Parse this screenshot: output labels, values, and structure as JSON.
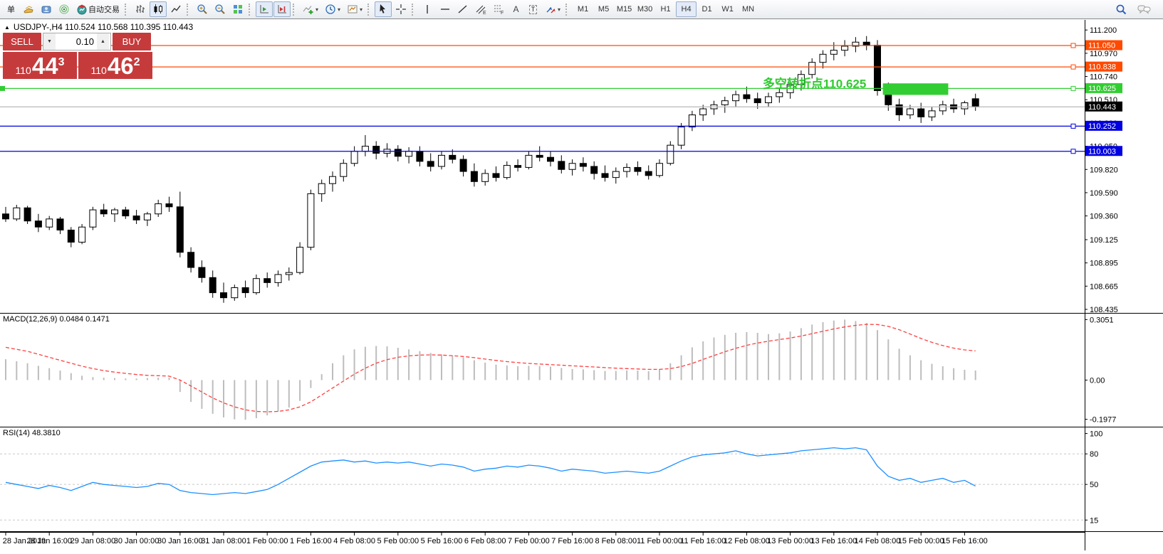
{
  "toolbar": {
    "order_button": "单",
    "autotrading_label": "自动交易",
    "timeframes": [
      "M1",
      "M5",
      "M15",
      "M30",
      "H1",
      "H4",
      "D1",
      "W1",
      "MN"
    ],
    "active_timeframe": "H4"
  },
  "icons": {
    "caret": "▾",
    "collapse": "▲",
    "spin_up": "▲",
    "spin_down": "▼",
    "letter_a": "A",
    "letter_t": "T",
    "channel_sub": "E",
    "fibo_sub": "F"
  },
  "chart": {
    "title": "USDJPY-,H4  110.524 110.568 110.395 110.443",
    "trade_panel": {
      "sell_label": "SELL",
      "buy_label": "BUY",
      "volume": "0.10",
      "sell_price_prefix": "110",
      "sell_price_big": "44",
      "sell_price_sup": "3",
      "buy_price_prefix": "110",
      "buy_price_big": "46",
      "buy_price_sup": "2"
    }
  },
  "chart_data": {
    "type": "candlestick-with-indicators",
    "symbol": "USDJPY-",
    "period": "H4",
    "price_pane": {
      "type": "candlestick",
      "ylim": [
        108.4,
        111.3
      ],
      "yticks": [
        "111.200",
        "110.970",
        "110.740",
        "110.510",
        "110.280",
        "110.050",
        "109.820",
        "109.590",
        "109.360",
        "109.125",
        "108.895",
        "108.665",
        "108.435"
      ],
      "bull_color": "#ffffff",
      "bear_color": "#000000",
      "levels": [
        {
          "price": 111.05,
          "label": "111.050",
          "color": "#ff4a00"
        },
        {
          "price": 110.838,
          "label": "110.838",
          "color": "#ff4a00"
        },
        {
          "price": 110.625,
          "label": "110.625",
          "color": "#32cd32"
        },
        {
          "price": 110.443,
          "label": "110.443",
          "color": "#000000",
          "line_color": "#b8b8b8",
          "current": true
        },
        {
          "price": 110.252,
          "label": "110.252",
          "color": "#0000e0"
        },
        {
          "price": 110.003,
          "label": "110.003",
          "color": "#0000e0"
        }
      ],
      "rectangle": {
        "from_index": 80.5,
        "to_index": 86.5,
        "price_top": 110.672,
        "price_bottom": 110.558,
        "color": "#32cd32"
      },
      "annotation": {
        "text": "多空转折点110.625",
        "price": 110.66,
        "end_index": 79.5,
        "color": "#2fcb2f"
      },
      "candles_ohlc": [
        [
          109.38,
          109.45,
          109.3,
          109.33
        ],
        [
          109.33,
          109.47,
          109.31,
          109.44
        ],
        [
          109.44,
          109.46,
          109.28,
          109.31
        ],
        [
          109.31,
          109.38,
          109.2,
          109.25
        ],
        [
          109.25,
          109.36,
          109.22,
          109.33
        ],
        [
          109.33,
          109.35,
          109.18,
          109.22
        ],
        [
          109.22,
          109.25,
          109.05,
          109.1
        ],
        [
          109.1,
          109.28,
          109.08,
          109.25
        ],
        [
          109.25,
          109.45,
          109.22,
          109.42
        ],
        [
          109.42,
          109.48,
          109.35,
          109.38
        ],
        [
          109.38,
          109.44,
          109.3,
          109.42
        ],
        [
          109.42,
          109.45,
          109.33,
          109.36
        ],
        [
          109.36,
          109.42,
          109.28,
          109.32
        ],
        [
          109.32,
          109.4,
          109.26,
          109.38
        ],
        [
          109.38,
          109.52,
          109.35,
          109.48
        ],
        [
          109.48,
          109.55,
          109.4,
          109.45
        ],
        [
          109.45,
          109.6,
          108.95,
          109.0
        ],
        [
          109.0,
          109.05,
          108.8,
          108.85
        ],
        [
          108.85,
          108.92,
          108.7,
          108.75
        ],
        [
          108.75,
          108.82,
          108.55,
          108.6
        ],
        [
          108.6,
          108.7,
          108.5,
          108.55
        ],
        [
          108.55,
          108.68,
          108.52,
          108.65
        ],
        [
          108.65,
          108.72,
          108.55,
          108.6
        ],
        [
          108.6,
          108.78,
          108.58,
          108.74
        ],
        [
          108.74,
          108.8,
          108.65,
          108.7
        ],
        [
          108.7,
          108.82,
          108.66,
          108.78
        ],
        [
          108.78,
          108.85,
          108.72,
          108.8
        ],
        [
          108.8,
          109.1,
          108.78,
          109.05
        ],
        [
          109.05,
          109.62,
          109.02,
          109.58
        ],
        [
          109.58,
          109.72,
          109.5,
          109.68
        ],
        [
          109.68,
          109.8,
          109.6,
          109.75
        ],
        [
          109.75,
          109.92,
          109.7,
          109.88
        ],
        [
          109.88,
          110.05,
          109.85,
          110.0
        ],
        [
          110.0,
          110.16,
          109.95,
          110.05
        ],
        [
          110.05,
          110.1,
          109.92,
          109.98
        ],
        [
          109.98,
          110.08,
          109.94,
          110.02
        ],
        [
          110.02,
          110.06,
          109.9,
          109.95
        ],
        [
          109.95,
          110.04,
          109.88,
          110.0
        ],
        [
          110.0,
          110.05,
          109.85,
          109.9
        ],
        [
          109.9,
          109.98,
          109.8,
          109.85
        ],
        [
          109.85,
          110.0,
          109.82,
          109.96
        ],
        [
          109.96,
          110.02,
          109.88,
          109.92
        ],
        [
          109.92,
          109.96,
          109.75,
          109.8
        ],
        [
          109.8,
          109.88,
          109.65,
          109.7
        ],
        [
          109.7,
          109.82,
          109.66,
          109.78
        ],
        [
          109.78,
          109.85,
          109.7,
          109.74
        ],
        [
          109.74,
          109.9,
          109.72,
          109.86
        ],
        [
          109.86,
          109.92,
          109.8,
          109.84
        ],
        [
          109.84,
          110.0,
          109.82,
          109.96
        ],
        [
          109.96,
          110.05,
          109.9,
          109.94
        ],
        [
          109.94,
          110.0,
          109.85,
          109.9
        ],
        [
          109.9,
          109.96,
          109.78,
          109.82
        ],
        [
          109.82,
          109.92,
          109.76,
          109.88
        ],
        [
          109.88,
          109.94,
          109.8,
          109.85
        ],
        [
          109.85,
          109.9,
          109.72,
          109.78
        ],
        [
          109.78,
          109.86,
          109.7,
          109.74
        ],
        [
          109.74,
          109.84,
          109.68,
          109.8
        ],
        [
          109.8,
          109.88,
          109.74,
          109.84
        ],
        [
          109.84,
          109.9,
          109.76,
          109.8
        ],
        [
          109.8,
          109.86,
          109.72,
          109.76
        ],
        [
          109.76,
          109.92,
          109.74,
          109.88
        ],
        [
          109.88,
          110.1,
          109.86,
          110.06
        ],
        [
          110.06,
          110.28,
          110.02,
          110.24
        ],
        [
          110.24,
          110.4,
          110.2,
          110.36
        ],
        [
          110.36,
          110.46,
          110.3,
          110.42
        ],
        [
          110.42,
          110.5,
          110.36,
          110.46
        ],
        [
          110.46,
          110.54,
          110.38,
          110.5
        ],
        [
          110.5,
          110.6,
          110.44,
          110.56
        ],
        [
          110.56,
          110.64,
          110.48,
          110.52
        ],
        [
          110.52,
          110.58,
          110.42,
          110.48
        ],
        [
          110.48,
          110.58,
          110.44,
          110.54
        ],
        [
          110.54,
          110.62,
          110.48,
          110.58
        ],
        [
          110.58,
          110.7,
          110.52,
          110.66
        ],
        [
          110.66,
          110.8,
          110.6,
          110.76
        ],
        [
          110.76,
          110.92,
          110.72,
          110.88
        ],
        [
          110.88,
          111.0,
          110.82,
          110.96
        ],
        [
          110.96,
          111.08,
          110.9,
          111.0
        ],
        [
          111.0,
          111.1,
          110.94,
          111.04
        ],
        [
          111.04,
          111.13,
          110.98,
          111.08
        ],
        [
          111.08,
          111.14,
          111.0,
          111.05
        ],
        [
          111.05,
          111.1,
          110.55,
          110.6
        ],
        [
          110.6,
          110.68,
          110.4,
          110.46
        ],
        [
          110.46,
          110.52,
          110.3,
          110.36
        ],
        [
          110.36,
          110.46,
          110.32,
          110.42
        ],
        [
          110.42,
          110.48,
          110.28,
          110.34
        ],
        [
          110.34,
          110.44,
          110.3,
          110.4
        ],
        [
          110.4,
          110.5,
          110.36,
          110.46
        ],
        [
          110.46,
          110.52,
          110.38,
          110.42
        ],
        [
          110.42,
          110.5,
          110.36,
          110.48
        ],
        [
          110.52,
          110.57,
          110.4,
          110.44
        ]
      ]
    },
    "macd_pane": {
      "type": "bar",
      "label": "MACD(12,26,9) 0.0484 0.1471",
      "ylim": [
        -0.235,
        0.335
      ],
      "yticks": [
        "0.3051",
        "0.00",
        "-0.1977"
      ],
      "histogram_color": "#bdbdbd",
      "signal_color": "#ff4040",
      "histogram": [
        0.105,
        0.095,
        0.085,
        0.072,
        0.06,
        0.048,
        0.035,
        0.022,
        0.015,
        0.012,
        0.01,
        0.008,
        0.008,
        0.01,
        0.012,
        0.012,
        -0.06,
        -0.11,
        -0.145,
        -0.17,
        -0.188,
        -0.198,
        -0.2,
        -0.192,
        -0.178,
        -0.16,
        -0.138,
        -0.105,
        -0.04,
        0.03,
        0.085,
        0.125,
        0.155,
        0.168,
        0.172,
        0.17,
        0.163,
        0.155,
        0.146,
        0.137,
        0.13,
        0.124,
        0.115,
        0.1,
        0.088,
        0.078,
        0.074,
        0.07,
        0.072,
        0.071,
        0.068,
        0.061,
        0.056,
        0.054,
        0.05,
        0.046,
        0.046,
        0.049,
        0.048,
        0.045,
        0.055,
        0.085,
        0.125,
        0.165,
        0.195,
        0.215,
        0.228,
        0.238,
        0.242,
        0.238,
        0.232,
        0.236,
        0.245,
        0.262,
        0.28,
        0.292,
        0.3,
        0.3051,
        0.298,
        0.288,
        0.252,
        0.205,
        0.158,
        0.125,
        0.1,
        0.082,
        0.07,
        0.06,
        0.052,
        0.0484
      ],
      "signal": [
        0.165,
        0.155,
        0.145,
        0.13,
        0.115,
        0.1,
        0.085,
        0.07,
        0.058,
        0.048,
        0.04,
        0.034,
        0.028,
        0.024,
        0.022,
        0.02,
        0.0,
        -0.03,
        -0.06,
        -0.09,
        -0.115,
        -0.135,
        -0.15,
        -0.158,
        -0.16,
        -0.158,
        -0.15,
        -0.135,
        -0.11,
        -0.075,
        -0.04,
        -0.005,
        0.03,
        0.06,
        0.085,
        0.103,
        0.115,
        0.122,
        0.126,
        0.127,
        0.126,
        0.123,
        0.119,
        0.113,
        0.106,
        0.099,
        0.093,
        0.088,
        0.084,
        0.081,
        0.078,
        0.075,
        0.072,
        0.069,
        0.066,
        0.063,
        0.06,
        0.058,
        0.056,
        0.054,
        0.054,
        0.058,
        0.068,
        0.084,
        0.104,
        0.124,
        0.143,
        0.16,
        0.175,
        0.187,
        0.196,
        0.204,
        0.212,
        0.222,
        0.234,
        0.246,
        0.258,
        0.268,
        0.276,
        0.281,
        0.28,
        0.271,
        0.254,
        0.232,
        0.21,
        0.19,
        0.174,
        0.161,
        0.152,
        0.147
      ]
    },
    "rsi_pane": {
      "type": "line",
      "label": "RSI(14) 48.3810",
      "ylim": [
        4,
        106
      ],
      "yticks": [
        "100",
        "80",
        "50",
        "15"
      ],
      "level_lines": [
        80,
        50,
        15
      ],
      "line_color": "#1e90ff",
      "values": [
        52,
        50,
        48,
        46,
        49,
        47,
        44,
        48,
        52,
        50,
        49,
        48,
        47,
        48,
        51,
        50,
        44,
        42,
        41,
        40,
        41,
        42,
        41,
        43,
        45,
        50,
        56,
        62,
        68,
        72,
        73,
        74,
        72,
        73,
        71,
        72,
        71,
        72,
        70,
        68,
        70,
        69,
        67,
        63,
        65,
        66,
        68,
        67,
        69,
        68,
        66,
        63,
        65,
        64,
        63,
        61,
        62,
        63,
        62,
        61,
        63,
        68,
        73,
        77,
        79,
        80,
        81,
        83,
        80,
        78,
        79,
        80,
        81,
        83,
        84,
        85,
        86,
        85,
        86,
        84,
        68,
        58,
        54,
        56,
        52,
        54,
        56,
        52,
        54,
        48.4
      ]
    },
    "time_axis": {
      "label_every_n_candles": 4,
      "labels": [
        "28 Jan 2019",
        "28 Jan 16:00",
        "29 Jan 08:00",
        "30 Jan 00:00",
        "30 Jan 16:00",
        "31 Jan 08:00",
        "1 Feb 00:00",
        "1 Feb 16:00",
        "4 Feb 08:00",
        "5 Feb 00:00",
        "5 Feb 16:00",
        "6 Feb 08:00",
        "7 Feb 00:00",
        "7 Feb 16:00",
        "8 Feb 08:00",
        "11 Feb 00:00",
        "11 Feb 16:00",
        "12 Feb 08:00",
        "13 Feb 00:00",
        "13 Feb 16:00",
        "14 Feb 08:00",
        "15 Feb 00:00",
        "15 Feb 16:00"
      ]
    }
  }
}
